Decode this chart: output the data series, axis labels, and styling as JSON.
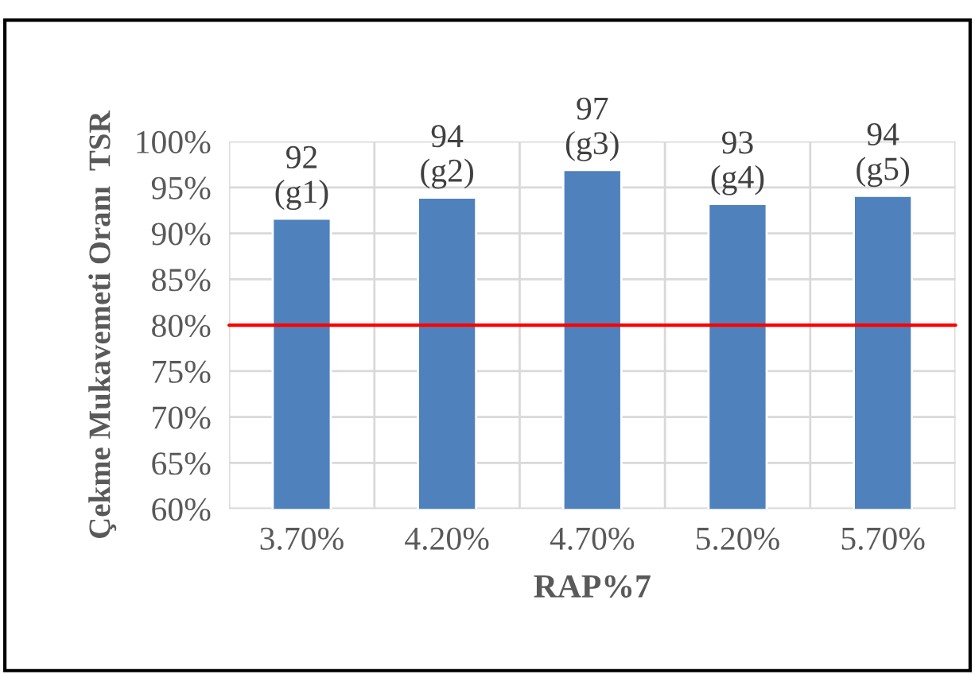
{
  "chart_data": {
    "type": "bar",
    "xlabel": "RAP%7",
    "ylabel": "Çekme Mukavemeti Oranı  TSR",
    "categories": [
      "3.70%",
      "4.20%",
      "4.70%",
      "5.20%",
      "5.70%"
    ],
    "values": [
      91.6,
      93.9,
      96.9,
      93.2,
      94.1
    ],
    "value_labels": [
      "92\n(g1)",
      "94\n(g2)",
      "97\n(g3)",
      "93\n(g4)",
      "94\n(g5)"
    ],
    "color": "#4f81bd",
    "ylim": [
      60,
      100
    ],
    "yticks": [
      {
        "value": 60,
        "label": "60%"
      },
      {
        "value": 65,
        "label": "65%"
      },
      {
        "value": 70,
        "label": "70%"
      },
      {
        "value": 75,
        "label": "75%"
      },
      {
        "value": 80,
        "label": "80%"
      },
      {
        "value": 85,
        "label": "85%"
      },
      {
        "value": 90,
        "label": "90%"
      },
      {
        "value": 95,
        "label": "95%"
      },
      {
        "value": 100,
        "label": "100%"
      }
    ],
    "ref_lines": [
      {
        "axis": "y",
        "value": 80,
        "color": "#ff0000"
      }
    ],
    "grid": true,
    "legend": false
  }
}
